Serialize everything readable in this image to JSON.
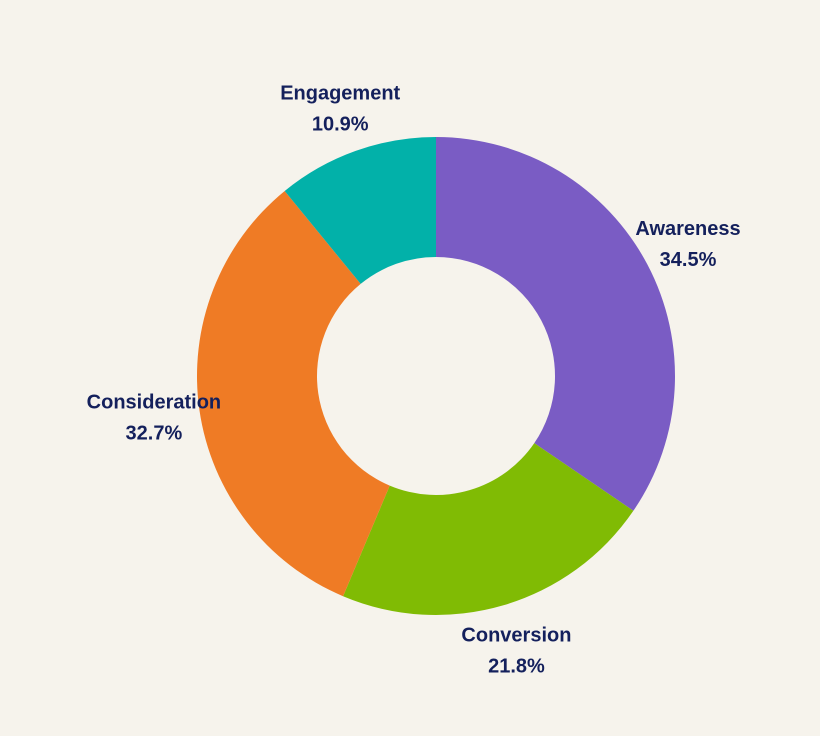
{
  "chart_data": {
    "type": "pie",
    "variant": "donut",
    "title": "",
    "slices": [
      {
        "label": "Awareness",
        "value": 34.5,
        "display": "34.5%",
        "color": "#7a5cc4"
      },
      {
        "label": "Conversion",
        "value": 21.8,
        "display": "21.8%",
        "color": "#80bb04"
      },
      {
        "label": "Consideration",
        "value": 32.7,
        "display": "32.7%",
        "color": "#ef7b25"
      },
      {
        "label": "Engagement",
        "value": 10.9,
        "display": "10.9%",
        "color": "#02b1a9"
      }
    ],
    "start": "top",
    "direction": "clockwise",
    "label_color": "#14205c",
    "background": "#f6f3ec"
  }
}
